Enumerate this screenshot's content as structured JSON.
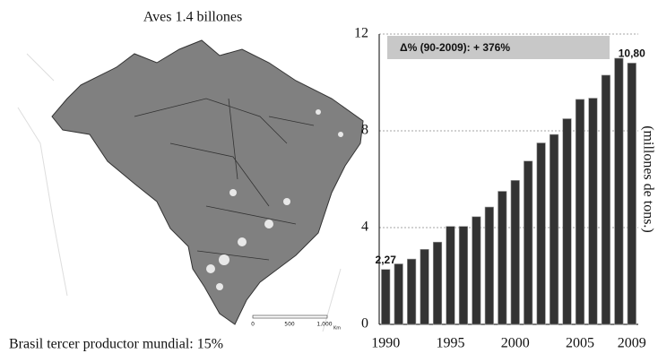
{
  "map": {
    "title": "Aves  1.4 billones",
    "caption": "Brasil tercer productor mundial: 15%",
    "scale": {
      "labels": [
        "0",
        "500",
        "1,000"
      ],
      "unit": "Km"
    }
  },
  "chart_data": {
    "type": "bar",
    "annotation": "Δ% (90-2009):  + 376%",
    "y_label": "(millones de tons.)",
    "x": [
      1990,
      1991,
      1992,
      1993,
      1994,
      1995,
      1996,
      1997,
      1998,
      1999,
      2000,
      2001,
      2002,
      2003,
      2004,
      2005,
      2006,
      2007,
      2008,
      2009
    ],
    "values": [
      2.27,
      2.5,
      2.7,
      3.1,
      3.4,
      4.05,
      4.05,
      4.45,
      4.85,
      5.5,
      5.95,
      6.75,
      7.5,
      7.85,
      8.5,
      9.3,
      9.35,
      10.3,
      11.0,
      10.8
    ],
    "value_labels": [
      "2,27",
      null,
      null,
      null,
      null,
      null,
      null,
      null,
      null,
      null,
      null,
      null,
      null,
      null,
      null,
      null,
      null,
      null,
      null,
      "10,80"
    ],
    "color": "#333333",
    "xlim": [
      1989.5,
      2009.5
    ],
    "xticks": [
      1990,
      1995,
      2000,
      2005,
      2009
    ],
    "ylim": [
      0,
      12
    ],
    "yticks": [
      0,
      4,
      8,
      12
    ],
    "grid": true
  }
}
